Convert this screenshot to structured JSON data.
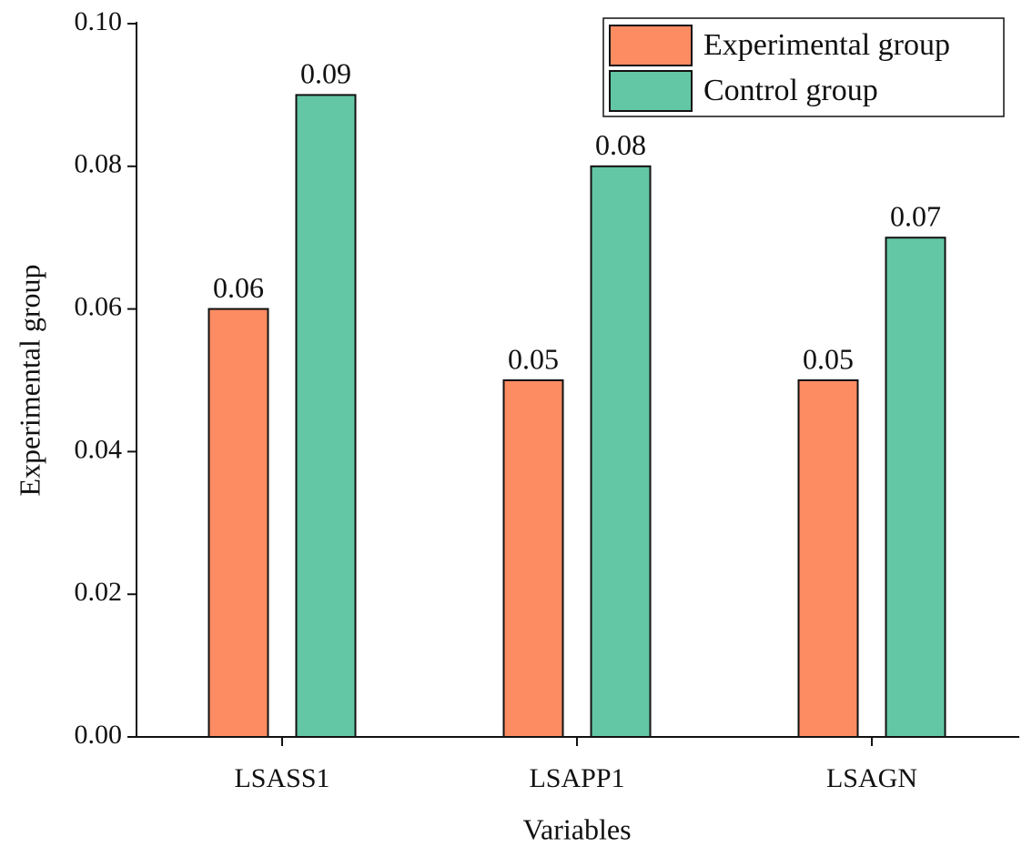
{
  "chart_data": {
    "type": "bar",
    "x_label": "Variables",
    "y_label": "Experimental group",
    "categories": [
      "LSASS1",
      "LSAPP1",
      "LSAGN"
    ],
    "series": [
      {
        "name": "Experimental group",
        "color": "#fd8c62",
        "values": [
          0.06,
          0.05,
          0.05
        ]
      },
      {
        "name": "Control group",
        "color": "#63c6a5",
        "values": [
          0.09,
          0.08,
          0.07
        ]
      }
    ],
    "ylim": [
      0,
      0.1
    ],
    "yticks": [
      {
        "value": 0,
        "label": "0.00"
      },
      0.02,
      0.04,
      0.06,
      0.08,
      {
        "value": 0.1,
        "label": "0.10"
      }
    ],
    "legend": "upper right"
  }
}
